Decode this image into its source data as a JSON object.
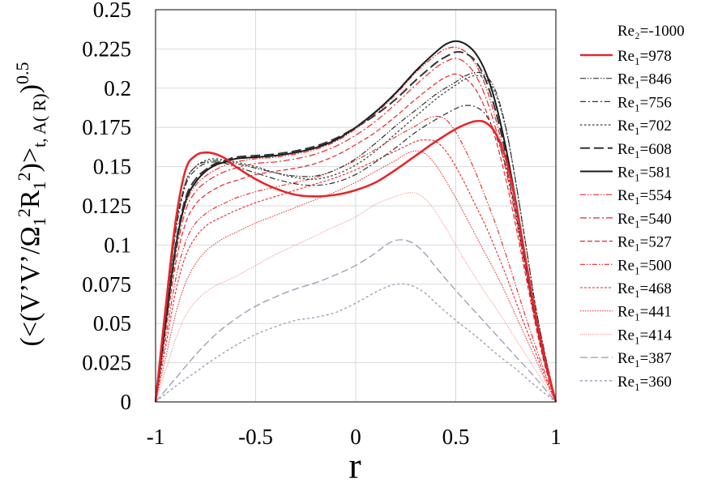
{
  "chart_data": {
    "type": "line",
    "xlabel": "r",
    "ylabel": "(<(V’V’/Ω1²R1²)>t, A( R))0.5",
    "ylabel_parts": {
      "open": "(<(V’V’/Ω",
      "sub1": "1",
      "sup1": "2",
      "mid": "R",
      "sub2": "1",
      "sup2": "2",
      "close": ")>",
      "sub3": "t, A( R)",
      "close2": ")",
      "sup3": "0.5"
    },
    "xlim": [
      -1,
      1
    ],
    "ylim": [
      0,
      0.25
    ],
    "x_ticks": [
      -1,
      -0.5,
      0,
      0.5,
      1
    ],
    "x_tick_labels": [
      "-1",
      "-0.5",
      "0",
      "0.5",
      "1"
    ],
    "y_ticks": [
      0,
      0.025,
      0.05,
      0.075,
      0.1,
      0.125,
      0.15,
      0.175,
      0.2,
      0.225,
      0.25
    ],
    "y_tick_labels": [
      "0",
      "0.025",
      "0.05",
      "0.075",
      "0.1",
      "0.125",
      "0.15",
      "0.175",
      "0.2",
      "0.225",
      "0.25"
    ],
    "grid": true,
    "legend_position": "right",
    "legend_header": "Re₂=-1000",
    "series": [
      {
        "name": "Re₁=978",
        "label_main": "Re",
        "label_sub": "1",
        "label_value": "=978",
        "color": "#e8262a",
        "width": 2.6,
        "dash": "",
        "x": [
          -1,
          -0.95,
          -0.9,
          -0.85,
          -0.8,
          -0.75,
          -0.7,
          -0.65,
          -0.6,
          -0.5,
          -0.4,
          -0.3,
          -0.2,
          -0.1,
          0,
          0.1,
          0.2,
          0.3,
          0.4,
          0.5,
          0.55,
          0.6,
          0.65,
          0.7,
          0.75,
          0.8,
          0.85,
          0.9,
          0.95,
          1
        ],
        "y": [
          0,
          0.06,
          0.115,
          0.148,
          0.157,
          0.159,
          0.158,
          0.155,
          0.15,
          0.142,
          0.136,
          0.132,
          0.131,
          0.132,
          0.135,
          0.14,
          0.148,
          0.157,
          0.166,
          0.174,
          0.177,
          0.179,
          0.178,
          0.171,
          0.155,
          0.127,
          0.09,
          0.055,
          0.025,
          0
        ]
      },
      {
        "name": "Re₁=846",
        "label_main": "Re",
        "label_sub": "1",
        "label_value": "=846",
        "color": "#333333",
        "width": 1.2,
        "dash": "7 2 1.5 2 1.5 2",
        "x": [
          -1,
          -0.95,
          -0.9,
          -0.85,
          -0.8,
          -0.75,
          -0.7,
          -0.65,
          -0.6,
          -0.5,
          -0.4,
          -0.3,
          -0.2,
          -0.1,
          0,
          0.1,
          0.2,
          0.3,
          0.4,
          0.5,
          0.55,
          0.6,
          0.65,
          0.7,
          0.75,
          0.8,
          0.85,
          0.9,
          0.95,
          1
        ],
        "y": [
          0,
          0.055,
          0.11,
          0.14,
          0.15,
          0.153,
          0.154,
          0.153,
          0.152,
          0.149,
          0.146,
          0.144,
          0.144,
          0.148,
          0.155,
          0.165,
          0.176,
          0.186,
          0.196,
          0.204,
          0.208,
          0.21,
          0.208,
          0.198,
          0.175,
          0.14,
          0.1,
          0.06,
          0.028,
          0
        ]
      },
      {
        "name": "Re₁=756",
        "label_main": "Re",
        "label_sub": "1",
        "label_value": "=756",
        "color": "#333333",
        "width": 1.2,
        "dash": "7 3 2 3",
        "x": [
          -1,
          -0.95,
          -0.9,
          -0.85,
          -0.8,
          -0.75,
          -0.7,
          -0.65,
          -0.6,
          -0.5,
          -0.4,
          -0.3,
          -0.2,
          -0.1,
          0,
          0.1,
          0.2,
          0.3,
          0.4,
          0.5,
          0.55,
          0.6,
          0.65,
          0.7,
          0.75,
          0.8,
          0.85,
          0.9,
          0.95,
          1
        ],
        "y": [
          0,
          0.055,
          0.108,
          0.138,
          0.148,
          0.152,
          0.153,
          0.152,
          0.15,
          0.146,
          0.142,
          0.139,
          0.138,
          0.14,
          0.145,
          0.153,
          0.162,
          0.172,
          0.18,
          0.187,
          0.189,
          0.188,
          0.183,
          0.17,
          0.15,
          0.12,
          0.085,
          0.052,
          0.024,
          0
        ]
      },
      {
        "name": "Re₁=702",
        "label_main": "Re",
        "label_sub": "1",
        "label_value": "=702",
        "color": "#333333",
        "width": 1.2,
        "dash": "2.5 2.5",
        "x": [
          -1,
          -0.95,
          -0.9,
          -0.85,
          -0.8,
          -0.75,
          -0.7,
          -0.65,
          -0.6,
          -0.5,
          -0.4,
          -0.3,
          -0.2,
          -0.1,
          0,
          0.1,
          0.2,
          0.3,
          0.4,
          0.5,
          0.55,
          0.6,
          0.65,
          0.7,
          0.75,
          0.8,
          0.85,
          0.9,
          0.95,
          1
        ],
        "y": [
          0,
          0.055,
          0.11,
          0.14,
          0.15,
          0.154,
          0.155,
          0.154,
          0.153,
          0.15,
          0.146,
          0.143,
          0.142,
          0.145,
          0.151,
          0.16,
          0.171,
          0.182,
          0.193,
          0.202,
          0.206,
          0.208,
          0.206,
          0.196,
          0.174,
          0.14,
          0.1,
          0.06,
          0.028,
          0
        ]
      },
      {
        "name": "Re₁=608",
        "label_main": "Re",
        "label_sub": "1",
        "label_value": "=608",
        "color": "#333333",
        "width": 2.0,
        "dash": "12 5",
        "x": [
          -1,
          -0.95,
          -0.9,
          -0.85,
          -0.8,
          -0.75,
          -0.7,
          -0.65,
          -0.6,
          -0.5,
          -0.4,
          -0.3,
          -0.2,
          -0.1,
          0,
          0.1,
          0.2,
          0.3,
          0.4,
          0.45,
          0.5,
          0.55,
          0.6,
          0.65,
          0.7,
          0.75,
          0.8,
          0.85,
          0.9,
          0.95,
          1
        ],
        "y": [
          0,
          0.05,
          0.1,
          0.13,
          0.142,
          0.148,
          0.152,
          0.154,
          0.156,
          0.157,
          0.158,
          0.16,
          0.163,
          0.168,
          0.175,
          0.183,
          0.193,
          0.205,
          0.216,
          0.22,
          0.223,
          0.222,
          0.217,
          0.205,
          0.185,
          0.158,
          0.125,
          0.088,
          0.053,
          0.024,
          0
        ]
      },
      {
        "name": "Re₁=581",
        "label_main": "Re",
        "label_sub": "1",
        "label_value": "=581",
        "color": "#1a1a1a",
        "width": 2.0,
        "dash": "",
        "x": [
          -1,
          -0.95,
          -0.9,
          -0.85,
          -0.8,
          -0.75,
          -0.7,
          -0.65,
          -0.6,
          -0.5,
          -0.4,
          -0.3,
          -0.2,
          -0.1,
          0,
          0.1,
          0.2,
          0.3,
          0.4,
          0.45,
          0.5,
          0.55,
          0.6,
          0.65,
          0.7,
          0.75,
          0.8,
          0.85,
          0.9,
          0.95,
          1
        ],
        "y": [
          0,
          0.05,
          0.098,
          0.128,
          0.14,
          0.147,
          0.151,
          0.153,
          0.155,
          0.156,
          0.157,
          0.159,
          0.162,
          0.167,
          0.175,
          0.185,
          0.197,
          0.211,
          0.223,
          0.228,
          0.23,
          0.228,
          0.222,
          0.21,
          0.19,
          0.162,
          0.128,
          0.09,
          0.054,
          0.024,
          0
        ]
      },
      {
        "name": "Re₁=554",
        "label_main": "Re",
        "label_sub": "1",
        "label_value": "=554",
        "color": "#e8262a",
        "width": 1.2,
        "dash": "7 2 1.5 2 1.5 2",
        "x": [
          -1,
          -0.95,
          -0.9,
          -0.85,
          -0.8,
          -0.75,
          -0.7,
          -0.65,
          -0.6,
          -0.5,
          -0.4,
          -0.3,
          -0.2,
          -0.1,
          0,
          0.1,
          0.2,
          0.3,
          0.4,
          0.45,
          0.5,
          0.55,
          0.6,
          0.65,
          0.7,
          0.75,
          0.8,
          0.85,
          0.9,
          0.95,
          1
        ],
        "y": [
          0,
          0.05,
          0.097,
          0.126,
          0.138,
          0.144,
          0.148,
          0.151,
          0.153,
          0.155,
          0.156,
          0.158,
          0.161,
          0.166,
          0.174,
          0.184,
          0.196,
          0.21,
          0.221,
          0.225,
          0.226,
          0.223,
          0.215,
          0.201,
          0.18,
          0.153,
          0.12,
          0.085,
          0.051,
          0.023,
          0
        ]
      },
      {
        "name": "Re₁=540",
        "label_main": "Re",
        "label_sub": "1",
        "label_value": "=540",
        "color": "#e8262a",
        "width": 1.2,
        "dash": "8 3 2 3",
        "x": [
          -1,
          -0.95,
          -0.9,
          -0.85,
          -0.8,
          -0.75,
          -0.7,
          -0.65,
          -0.6,
          -0.5,
          -0.4,
          -0.3,
          -0.2,
          -0.1,
          0,
          0.1,
          0.2,
          0.3,
          0.4,
          0.45,
          0.5,
          0.55,
          0.6,
          0.65,
          0.7,
          0.75,
          0.8,
          0.85,
          0.9,
          0.95,
          1
        ],
        "y": [
          0,
          0.048,
          0.093,
          0.122,
          0.134,
          0.14,
          0.144,
          0.147,
          0.149,
          0.152,
          0.153,
          0.155,
          0.158,
          0.163,
          0.17,
          0.179,
          0.19,
          0.202,
          0.213,
          0.217,
          0.219,
          0.216,
          0.208,
          0.194,
          0.174,
          0.148,
          0.117,
          0.083,
          0.05,
          0.022,
          0
        ]
      },
      {
        "name": "Re₁=527",
        "label_main": "Re",
        "label_sub": "1",
        "label_value": "=527",
        "color": "#e8262a",
        "width": 1.2,
        "dash": "6 3",
        "x": [
          -1,
          -0.95,
          -0.9,
          -0.85,
          -0.8,
          -0.75,
          -0.7,
          -0.65,
          -0.6,
          -0.5,
          -0.4,
          -0.3,
          -0.2,
          -0.1,
          0,
          0.1,
          0.2,
          0.3,
          0.4,
          0.45,
          0.5,
          0.55,
          0.6,
          0.65,
          0.7,
          0.75,
          0.8,
          0.85,
          0.9,
          0.95,
          1
        ],
        "y": [
          0,
          0.045,
          0.088,
          0.114,
          0.126,
          0.132,
          0.136,
          0.139,
          0.141,
          0.145,
          0.147,
          0.149,
          0.152,
          0.157,
          0.164,
          0.172,
          0.182,
          0.193,
          0.203,
          0.207,
          0.209,
          0.206,
          0.199,
          0.186,
          0.167,
          0.142,
          0.112,
          0.08,
          0.048,
          0.021,
          0
        ]
      },
      {
        "name": "Re₁=500",
        "label_main": "Re",
        "label_sub": "1",
        "label_value": "=500",
        "color": "#e8262a",
        "width": 1.1,
        "dash": "6 2 1.5 2 1.5 2",
        "x": [
          -1,
          -0.95,
          -0.9,
          -0.85,
          -0.8,
          -0.75,
          -0.7,
          -0.65,
          -0.6,
          -0.5,
          -0.4,
          -0.3,
          -0.2,
          -0.1,
          0,
          0.1,
          0.2,
          0.3,
          0.35,
          0.4,
          0.45,
          0.5,
          0.55,
          0.6,
          0.65,
          0.7,
          0.75,
          0.8,
          0.85,
          0.9,
          0.95,
          1
        ],
        "y": [
          0,
          0.04,
          0.078,
          0.102,
          0.114,
          0.12,
          0.124,
          0.127,
          0.13,
          0.134,
          0.137,
          0.14,
          0.143,
          0.148,
          0.154,
          0.161,
          0.169,
          0.176,
          0.18,
          0.182,
          0.18,
          0.172,
          0.16,
          0.146,
          0.13,
          0.113,
          0.094,
          0.074,
          0.054,
          0.035,
          0.017,
          0
        ]
      },
      {
        "name": "Re₁=468",
        "label_main": "Re",
        "label_sub": "1",
        "label_value": "=468",
        "color": "#e8262a",
        "width": 1.1,
        "dash": "3 2",
        "x": [
          -1,
          -0.95,
          -0.9,
          -0.85,
          -0.8,
          -0.75,
          -0.7,
          -0.65,
          -0.6,
          -0.5,
          -0.4,
          -0.3,
          -0.2,
          -0.1,
          0,
          0.1,
          0.2,
          0.3,
          0.35,
          0.4,
          0.45,
          0.5,
          0.55,
          0.6,
          0.65,
          0.7,
          0.75,
          0.8,
          0.85,
          0.9,
          0.95,
          1
        ],
        "y": [
          0,
          0.035,
          0.07,
          0.093,
          0.105,
          0.112,
          0.116,
          0.119,
          0.122,
          0.127,
          0.131,
          0.135,
          0.139,
          0.143,
          0.148,
          0.154,
          0.16,
          0.166,
          0.167,
          0.166,
          0.16,
          0.15,
          0.138,
          0.125,
          0.112,
          0.097,
          0.081,
          0.064,
          0.047,
          0.031,
          0.015,
          0
        ]
      },
      {
        "name": "Re₁=441",
        "label_main": "Re",
        "label_sub": "1",
        "label_value": "=441",
        "color": "#e8262a",
        "width": 1.0,
        "dash": "1.5 1.5",
        "x": [
          -1,
          -0.95,
          -0.9,
          -0.85,
          -0.8,
          -0.75,
          -0.7,
          -0.65,
          -0.6,
          -0.5,
          -0.4,
          -0.3,
          -0.2,
          -0.1,
          0,
          0.1,
          0.2,
          0.25,
          0.3,
          0.35,
          0.4,
          0.45,
          0.5,
          0.55,
          0.6,
          0.65,
          0.7,
          0.75,
          0.8,
          0.85,
          0.9,
          0.95,
          1
        ],
        "y": [
          0,
          0.028,
          0.056,
          0.076,
          0.088,
          0.096,
          0.101,
          0.105,
          0.108,
          0.114,
          0.119,
          0.124,
          0.129,
          0.134,
          0.14,
          0.147,
          0.154,
          0.158,
          0.16,
          0.158,
          0.151,
          0.141,
          0.13,
          0.118,
          0.106,
          0.094,
          0.082,
          0.069,
          0.055,
          0.041,
          0.027,
          0.013,
          0
        ]
      },
      {
        "name": "Re₁=414",
        "label_main": "Re",
        "label_sub": "1",
        "label_value": "=414",
        "color": "#f07070",
        "width": 0.9,
        "dash": "1 1.5",
        "x": [
          -1,
          -0.95,
          -0.9,
          -0.85,
          -0.8,
          -0.75,
          -0.7,
          -0.65,
          -0.6,
          -0.5,
          -0.4,
          -0.3,
          -0.2,
          -0.1,
          0,
          0.1,
          0.2,
          0.25,
          0.3,
          0.35,
          0.4,
          0.45,
          0.5,
          0.55,
          0.6,
          0.65,
          0.7,
          0.75,
          0.8,
          0.85,
          0.9,
          0.95,
          1
        ],
        "y": [
          0,
          0.02,
          0.04,
          0.055,
          0.064,
          0.07,
          0.074,
          0.077,
          0.08,
          0.087,
          0.094,
          0.1,
          0.106,
          0.112,
          0.118,
          0.126,
          0.131,
          0.133,
          0.133,
          0.129,
          0.121,
          0.111,
          0.1,
          0.089,
          0.079,
          0.069,
          0.06,
          0.05,
          0.04,
          0.03,
          0.02,
          0.01,
          0
        ]
      },
      {
        "name": "Re₁=387",
        "label_main": "Re",
        "label_sub": "1",
        "label_value": "=387",
        "color": "#9a9ab4",
        "width": 1.3,
        "dash": "9 4",
        "x": [
          -1,
          -0.9,
          -0.8,
          -0.7,
          -0.6,
          -0.5,
          -0.4,
          -0.3,
          -0.2,
          -0.1,
          0,
          0.1,
          0.15,
          0.2,
          0.25,
          0.3,
          0.35,
          0.4,
          0.5,
          0.6,
          0.7,
          0.8,
          0.9,
          1
        ],
        "y": [
          0,
          0.015,
          0.03,
          0.043,
          0.053,
          0.061,
          0.067,
          0.072,
          0.076,
          0.081,
          0.087,
          0.095,
          0.1,
          0.103,
          0.103,
          0.1,
          0.094,
          0.086,
          0.071,
          0.057,
          0.043,
          0.029,
          0.015,
          0
        ]
      },
      {
        "name": "Re₁=360",
        "label_main": "Re",
        "label_sub": "1",
        "label_value": "=360",
        "color": "#9a9ab4",
        "width": 1.3,
        "dash": "3 3",
        "x": [
          -1,
          -0.9,
          -0.8,
          -0.7,
          -0.6,
          -0.5,
          -0.4,
          -0.3,
          -0.2,
          -0.1,
          0,
          0.1,
          0.15,
          0.2,
          0.25,
          0.3,
          0.35,
          0.4,
          0.5,
          0.6,
          0.7,
          0.8,
          0.9,
          1
        ],
        "y": [
          0,
          0.01,
          0.019,
          0.028,
          0.036,
          0.043,
          0.048,
          0.052,
          0.054,
          0.057,
          0.063,
          0.07,
          0.073,
          0.075,
          0.075,
          0.073,
          0.069,
          0.063,
          0.052,
          0.042,
          0.031,
          0.021,
          0.01,
          0
        ]
      }
    ]
  }
}
